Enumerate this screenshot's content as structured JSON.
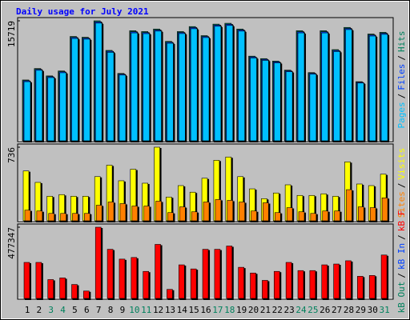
{
  "title": "Daily usage for July 2021",
  "days": [
    1,
    2,
    3,
    4,
    5,
    6,
    7,
    8,
    9,
    10,
    11,
    12,
    13,
    14,
    15,
    16,
    17,
    18,
    19,
    20,
    21,
    22,
    23,
    24,
    25,
    26,
    27,
    28,
    29,
    30,
    31
  ],
  "weekend_days": [
    3,
    4,
    10,
    11,
    17,
    18,
    24,
    25,
    31
  ],
  "weekend_color": "#00805c",
  "separator": "/",
  "chart_data": [
    {
      "type": "bar",
      "ylim": [
        0,
        15719
      ],
      "yticks": [
        15719
      ],
      "series": [
        {
          "name": "Hits",
          "color": "#00805c",
          "values": [
            8020,
            9510,
            8550,
            9190,
            13680,
            13580,
            15719,
            11870,
            8870,
            14430,
            14320,
            14650,
            13040,
            14320,
            14970,
            13790,
            15290,
            15400,
            14650,
            11120,
            10800,
            10480,
            9300,
            14430,
            8980,
            14430,
            11970,
            14860,
            7800,
            14000,
            14220
          ]
        },
        {
          "name": "Files",
          "color": "#0040ff",
          "values": [
            7920,
            9400,
            8450,
            9090,
            13560,
            13470,
            15580,
            11760,
            8780,
            14300,
            14190,
            14520,
            12930,
            14200,
            14840,
            13680,
            15160,
            15270,
            14530,
            11020,
            10700,
            10380,
            9210,
            14300,
            8890,
            14300,
            11860,
            14730,
            7720,
            13880,
            14100
          ]
        },
        {
          "name": "Pages",
          "color": "#00c0ff",
          "values": [
            7800,
            9280,
            8330,
            8960,
            13420,
            13330,
            15420,
            11620,
            8660,
            14150,
            14050,
            14380,
            12800,
            14060,
            14690,
            13540,
            15010,
            15110,
            14380,
            10890,
            10570,
            10250,
            9090,
            14150,
            8770,
            14150,
            11720,
            14580,
            7620,
            13740,
            13960
          ]
        }
      ]
    },
    {
      "type": "bar",
      "ylim": [
        0,
        736
      ],
      "yticks": [
        736
      ],
      "series": [
        {
          "name": "Visits",
          "color": "#ffff00",
          "values": [
            501,
            388,
            251,
            267,
            251,
            251,
            445,
            558,
            404,
            518,
            380,
            736,
            243,
            356,
            291,
            429,
            607,
            639,
            445,
            324,
            227,
            283,
            364,
            259,
            259,
            275,
            251,
            591,
            372,
            356,
            469
          ]
        },
        {
          "name": "Sites",
          "color": "#ff8000",
          "values": [
            113,
            105,
            81,
            81,
            81,
            81,
            162,
            194,
            178,
            154,
            154,
            202,
            89,
            146,
            97,
            194,
            218,
            210,
            194,
            105,
            186,
            89,
            138,
            97,
            81,
            105,
            105,
            316,
            146,
            138,
            235
          ]
        }
      ]
    },
    {
      "type": "bar",
      "ylim": [
        0,
        477347
      ],
      "yticks": [
        477347
      ],
      "series": [
        {
          "name": "kB F",
          "color": "#ff0000",
          "values": [
            244000,
            244000,
            130200,
            141000,
            97600,
            54200,
            477347,
            330900,
            265800,
            276600,
            184400,
            363400,
            65100,
            227800,
            200700,
            330900,
            330900,
            352600,
            211500,
            173600,
            124800,
            184400,
            244000,
            189800,
            189800,
            227800,
            233200,
            254900,
            151900,
            157300,
            292900
          ]
        },
        {
          "name": "kB In",
          "color": "#0040ff"
        },
        {
          "name": "kB Out",
          "color": "#00805c"
        }
      ]
    }
  ]
}
